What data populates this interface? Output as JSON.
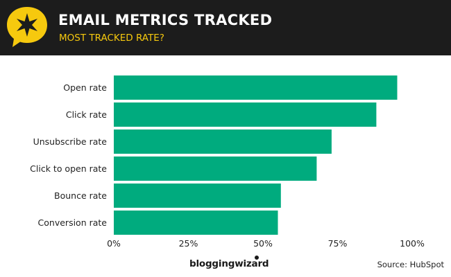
{
  "header": {
    "title": "EMAIL METRICS TRACKED",
    "subtitle": "MOST TRACKED RATE?",
    "badge_icon": "star-speech-bubble-icon",
    "colors": {
      "background": "#1c1c1c",
      "title": "#ffffff",
      "subtitle": "#f6c90e",
      "badge": "#f6c90e"
    }
  },
  "chart_data": {
    "type": "bar",
    "orientation": "horizontal",
    "categories": [
      "Open rate",
      "Click rate",
      "Unsubscribe rate",
      "Click to open rate",
      "Bounce rate",
      "Conversion rate"
    ],
    "values": [
      95,
      88,
      73,
      68,
      56,
      55
    ],
    "xlim": [
      0,
      100
    ],
    "xticks": [
      0,
      25,
      50,
      75,
      100
    ],
    "xtick_labels": [
      "0%",
      "25%",
      "50%",
      "75%",
      "100%"
    ],
    "grid": false,
    "legend": "none",
    "bar_color": "#00ab7e"
  },
  "footer": {
    "brand": "bloggingwizard",
    "source": "Source: HubSpot"
  }
}
